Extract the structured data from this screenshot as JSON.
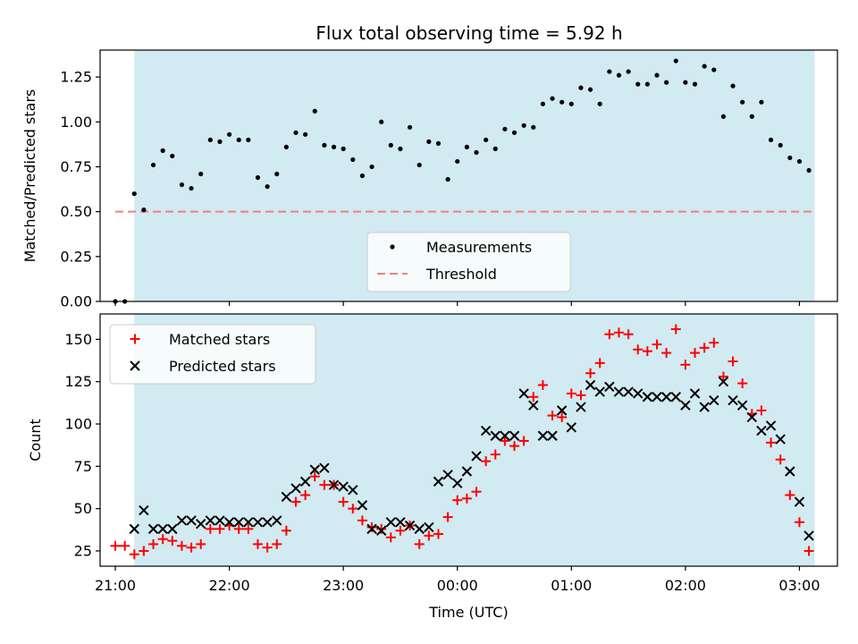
{
  "chart_data": [
    {
      "type": "scatter",
      "title": "Flux total observing time = 5.92 h",
      "xlabel": "",
      "ylabel": "Matched/Predicted stars",
      "ylim": [
        0,
        1.4
      ],
      "yticks": [
        "0.00",
        "0.25",
        "0.50",
        "0.75",
        "1.00",
        "1.25"
      ],
      "xlim": [
        "20:52",
        "03:20"
      ],
      "observing_window": [
        "21:10",
        "03:08"
      ],
      "observing_window_color": "#add8e6",
      "threshold": 0.5,
      "threshold_range": [
        "21:00",
        "03:08"
      ],
      "threshold_color": "#f08080",
      "legend": {
        "position": "center-bottom",
        "entries": [
          "Measurements",
          "Threshold"
        ]
      },
      "series": [
        {
          "name": "Measurements",
          "color": "#000000",
          "x": [
            "21:00",
            "21:05",
            "21:10",
            "21:15",
            "21:20",
            "21:25",
            "21:30",
            "21:35",
            "21:40",
            "21:45",
            "21:50",
            "21:55",
            "22:00",
            "22:05",
            "22:10",
            "22:15",
            "22:20",
            "22:25",
            "22:30",
            "22:35",
            "22:40",
            "22:45",
            "22:50",
            "22:55",
            "23:00",
            "23:05",
            "23:10",
            "23:15",
            "23:20",
            "23:25",
            "23:30",
            "23:35",
            "23:40",
            "23:45",
            "23:50",
            "23:55",
            "00:00",
            "00:05",
            "00:10",
            "00:15",
            "00:20",
            "00:25",
            "00:30",
            "00:35",
            "00:40",
            "00:45",
            "00:50",
            "00:55",
            "01:00",
            "01:05",
            "01:10",
            "01:15",
            "01:20",
            "01:25",
            "01:30",
            "01:35",
            "01:40",
            "01:45",
            "01:50",
            "01:55",
            "02:00",
            "02:05",
            "02:10",
            "02:15",
            "02:20",
            "02:25",
            "02:30",
            "02:35",
            "02:40",
            "02:45",
            "02:50",
            "02:55",
            "03:00",
            "03:05"
          ],
          "y": [
            0.0,
            0.0,
            0.6,
            0.51,
            0.76,
            0.84,
            0.81,
            0.65,
            0.63,
            0.71,
            0.9,
            0.89,
            0.93,
            0.9,
            0.9,
            0.69,
            0.64,
            0.71,
            0.86,
            0.94,
            0.93,
            1.06,
            0.87,
            0.86,
            0.85,
            0.79,
            0.7,
            0.75,
            1.0,
            0.87,
            0.85,
            0.97,
            0.76,
            0.89,
            0.88,
            0.68,
            0.78,
            0.86,
            0.83,
            0.9,
            0.85,
            0.96,
            0.94,
            0.98,
            0.97,
            1.1,
            1.13,
            1.11,
            1.1,
            1.19,
            1.18,
            1.1,
            1.28,
            1.26,
            1.28,
            1.21,
            1.21,
            1.26,
            1.22,
            1.34,
            1.22,
            1.21,
            1.31,
            1.29,
            1.03,
            1.2,
            1.11,
            1.03,
            1.11,
            0.9,
            0.87,
            0.8,
            0.78,
            0.73
          ]
        }
      ]
    },
    {
      "type": "scatter",
      "title": "",
      "xlabel": "Time (UTC)",
      "ylabel": "Count",
      "ylim": [
        16,
        165
      ],
      "yticks": [
        "25",
        "50",
        "75",
        "100",
        "125",
        "150"
      ],
      "xticks": [
        "21:00",
        "22:00",
        "23:00",
        "00:00",
        "01:00",
        "02:00",
        "03:00"
      ],
      "xlim": [
        "20:52",
        "03:20"
      ],
      "observing_window": [
        "21:10",
        "03:08"
      ],
      "observing_window_color": "#add8e6",
      "legend": {
        "position": "top-left",
        "entries": [
          "Matched stars",
          "Predicted stars"
        ]
      },
      "series": [
        {
          "name": "Matched stars",
          "color": "#ff0000",
          "marker": "+",
          "x": [
            "21:00",
            "21:05",
            "21:10",
            "21:15",
            "21:20",
            "21:25",
            "21:30",
            "21:35",
            "21:40",
            "21:45",
            "21:50",
            "21:55",
            "22:00",
            "22:05",
            "22:10",
            "22:15",
            "22:20",
            "22:25",
            "22:30",
            "22:35",
            "22:40",
            "22:45",
            "22:50",
            "22:55",
            "23:00",
            "23:05",
            "23:10",
            "23:15",
            "23:20",
            "23:25",
            "23:30",
            "23:35",
            "23:40",
            "23:45",
            "23:50",
            "23:55",
            "00:00",
            "00:05",
            "00:10",
            "00:15",
            "00:20",
            "00:25",
            "00:30",
            "00:35",
            "00:40",
            "00:45",
            "00:50",
            "00:55",
            "01:00",
            "01:05",
            "01:10",
            "01:15",
            "01:20",
            "01:25",
            "01:30",
            "01:35",
            "01:40",
            "01:45",
            "01:50",
            "01:55",
            "02:00",
            "02:05",
            "02:10",
            "02:15",
            "02:20",
            "02:25",
            "02:30",
            "02:35",
            "02:40",
            "02:45",
            "02:50",
            "02:55",
            "03:00",
            "03:05"
          ],
          "y": [
            28,
            28,
            23,
            25,
            29,
            32,
            31,
            28,
            27,
            29,
            38,
            38,
            40,
            38,
            38,
            29,
            27,
            29,
            37,
            54,
            58,
            69,
            64,
            64,
            54,
            50,
            43,
            39,
            38,
            33,
            37,
            40,
            29,
            34,
            35,
            45,
            55,
            56,
            60,
            78,
            82,
            90,
            87,
            90,
            116,
            123,
            105,
            104,
            118,
            117,
            130,
            136,
            153,
            154,
            153,
            144,
            143,
            147,
            142,
            156,
            135,
            142,
            145,
            148,
            128,
            137,
            124,
            106,
            108,
            89,
            79,
            58,
            42,
            25
          ]
        },
        {
          "name": "Predicted stars",
          "color": "#000000",
          "marker": "x",
          "x": [
            "21:10",
            "21:15",
            "21:20",
            "21:25",
            "21:30",
            "21:35",
            "21:40",
            "21:45",
            "21:50",
            "21:55",
            "22:00",
            "22:05",
            "22:10",
            "22:15",
            "22:20",
            "22:25",
            "22:30",
            "22:35",
            "22:40",
            "22:45",
            "22:50",
            "22:55",
            "23:00",
            "23:05",
            "23:10",
            "23:15",
            "23:20",
            "23:25",
            "23:30",
            "23:35",
            "23:40",
            "23:45",
            "23:50",
            "23:55",
            "00:00",
            "00:05",
            "00:10",
            "00:15",
            "00:20",
            "00:25",
            "00:30",
            "00:35",
            "00:40",
            "00:45",
            "00:50",
            "00:55",
            "01:00",
            "01:05",
            "01:10",
            "01:15",
            "01:20",
            "01:25",
            "01:30",
            "01:35",
            "01:40",
            "01:45",
            "01:50",
            "01:55",
            "02:00",
            "02:05",
            "02:10",
            "02:15",
            "02:20",
            "02:25",
            "02:30",
            "02:35",
            "02:40",
            "02:45",
            "02:50",
            "02:55",
            "03:00",
            "03:05"
          ],
          "y": [
            38,
            49,
            38,
            38,
            38,
            43,
            43,
            41,
            43,
            43,
            42,
            42,
            42,
            42,
            42,
            43,
            57,
            62,
            66,
            73,
            74,
            64,
            63,
            61,
            52,
            38,
            37,
            42,
            42,
            40,
            38,
            39,
            66,
            70,
            65,
            72,
            81,
            96,
            93,
            93,
            93,
            118,
            111,
            93,
            93,
            108,
            98,
            110,
            123,
            119,
            122,
            119,
            119,
            118,
            116,
            116,
            116,
            116,
            111,
            118,
            110,
            114,
            125,
            114,
            111,
            104,
            96,
            99,
            91,
            72,
            54,
            34
          ]
        }
      ]
    }
  ]
}
